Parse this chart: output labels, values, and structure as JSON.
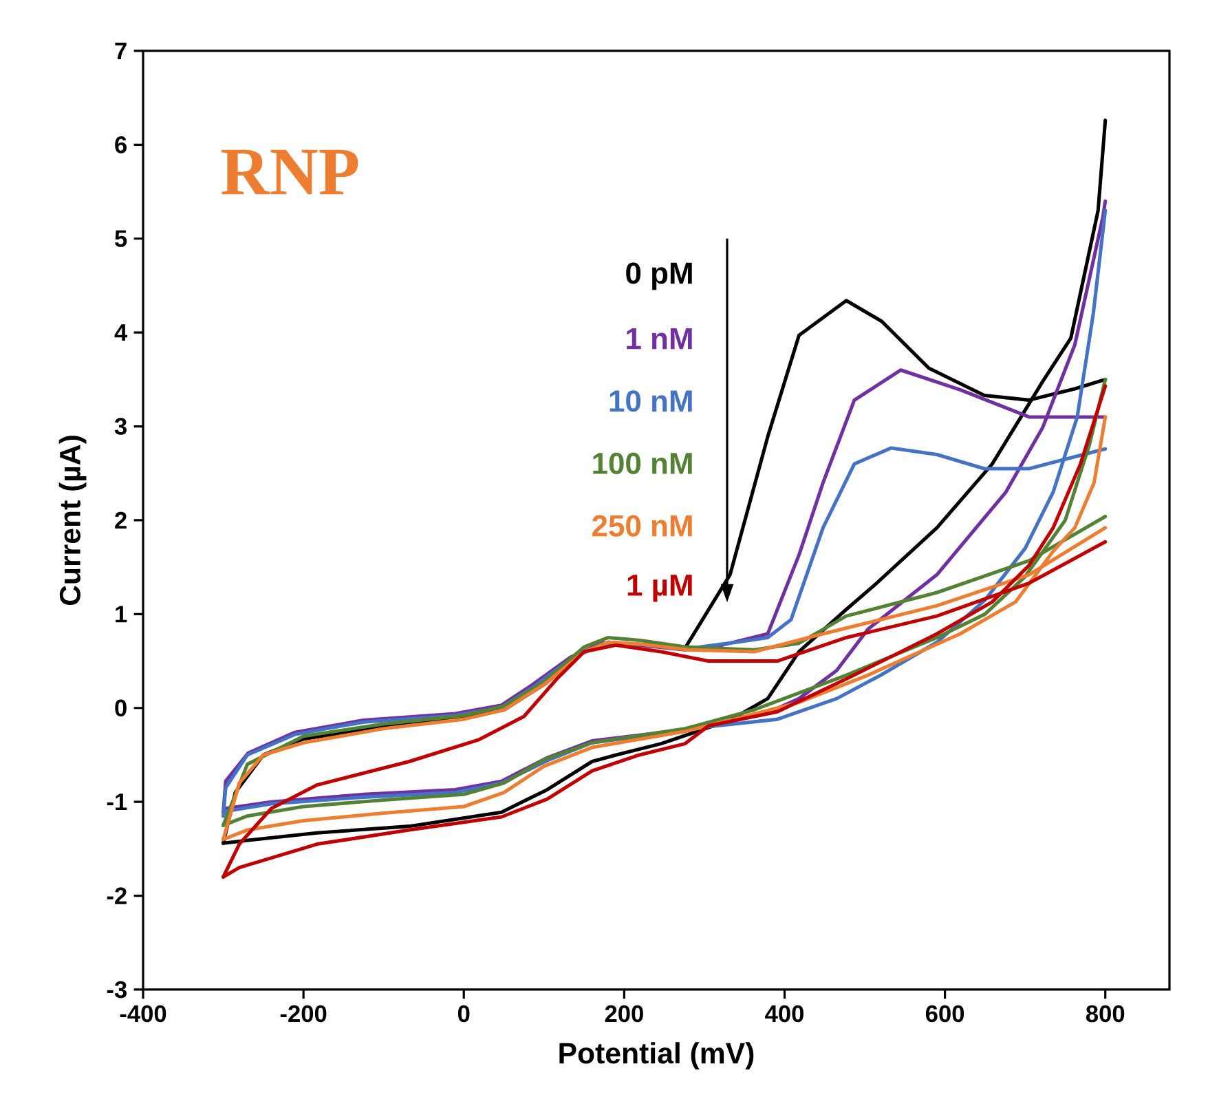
{
  "chart_data": {
    "type": "line",
    "xlabel": "Potential (mV)",
    "ylabel": "Current (µA)",
    "annotations": [
      "RNP"
    ],
    "xlim": [
      -400,
      880
    ],
    "ylim": [
      -3,
      7
    ],
    "xticks": [
      -400,
      -200,
      0,
      200,
      400,
      600,
      800
    ],
    "yticks": [
      -3,
      -2,
      -1,
      0,
      1,
      2,
      3,
      4,
      5,
      6,
      7
    ],
    "grid": false,
    "legend": "center",
    "marker": "none",
    "line_style": "solid",
    "series": [
      {
        "name": "0 pM",
        "color": "#000000",
        "x": [
          -300,
          -285,
          -250,
          -200,
          -100,
          0,
          50,
          100,
          150,
          180,
          220,
          276,
          332,
          379,
          418,
          477,
          521,
          580,
          649,
          705,
          762,
          800
        ],
        "values": [
          -1.44,
          -0.9,
          -0.5,
          -0.33,
          -0.2,
          -0.1,
          -0.02,
          0.25,
          0.6,
          0.7,
          null,
          0.64,
          1.42,
          2.89,
          3.97,
          4.34,
          4.12,
          3.62,
          3.33,
          3.28,
          3.4,
          3.5
        ]
      },
      {
        "color": "#000000",
        "x": [
          800,
          791,
          757,
          722,
          659,
          590,
          511,
          477,
          418,
          379,
          332,
          246,
          190,
          160,
          104,
          47,
          -68,
          -183,
          -269,
          -300
        ],
        "values": [
          6.26,
          5.3,
          3.94,
          3.48,
          2.6,
          1.92,
          1.3,
          1.05,
          0.6,
          0.1,
          -0.13,
          -0.38,
          -0.5,
          -0.57,
          -0.87,
          -1.11,
          -1.26,
          -1.33,
          -1.41,
          -1.44
        ]
      },
      {
        "name": "1 nM",
        "color": "#7030a0",
        "x": [
          -300,
          -297,
          -269,
          -211,
          -125,
          -11,
          47,
          86,
          133,
          172,
          219,
          276,
          322,
          379,
          418,
          448,
          487,
          545,
          619,
          705,
          800
        ],
        "values": [
          -1.11,
          -0.78,
          -0.48,
          -0.26,
          -0.13,
          -0.06,
          0.03,
          0.25,
          0.54,
          0.69,
          0.67,
          0.62,
          0.67,
          0.79,
          1.63,
          2.4,
          3.28,
          3.6,
          3.39,
          3.1,
          3.1
        ]
      },
      {
        "color": "#7030a0",
        "x": [
          800,
          797,
          762,
          722,
          676,
          590,
          504,
          465,
          418,
          379,
          305,
          276,
          160,
          104,
          47,
          -11,
          -125,
          -240,
          -297,
          -300
        ],
        "values": [
          5.4,
          5.23,
          3.87,
          2.99,
          2.3,
          1.42,
          0.84,
          0.4,
          0.1,
          -0.05,
          -0.19,
          -0.23,
          -0.35,
          -0.53,
          -0.78,
          -0.87,
          -0.92,
          -1.0,
          -1.07,
          -1.11
        ]
      },
      {
        "name": "10 nM",
        "color": "#4472c4",
        "x": [
          -300,
          -297,
          -270,
          -210,
          -125,
          -11,
          47,
          86,
          133,
          172,
          219,
          276,
          340,
          379,
          408,
          448,
          487,
          533,
          590,
          649,
          705,
          800
        ],
        "values": [
          -1.15,
          -0.85,
          -0.5,
          -0.28,
          -0.15,
          -0.08,
          0.01,
          0.22,
          0.52,
          0.68,
          0.68,
          0.63,
          0.7,
          0.75,
          0.94,
          1.92,
          2.6,
          2.77,
          2.7,
          2.55,
          2.55,
          2.76
        ]
      },
      {
        "color": "#4472c4",
        "x": [
          800,
          785,
          765,
          735,
          700,
          650,
          590,
          520,
          465,
          391,
          305,
          276,
          160,
          104,
          47,
          -11,
          -125,
          -240,
          -297,
          -300
        ],
        "values": [
          5.3,
          4.2,
          3.1,
          2.3,
          1.7,
          1.15,
          0.7,
          0.35,
          0.1,
          -0.12,
          -0.2,
          -0.24,
          -0.37,
          -0.56,
          -0.8,
          -0.9,
          -0.95,
          -1.02,
          -1.1,
          -1.15
        ]
      },
      {
        "name": "100 nM",
        "color": "#548235",
        "x": [
          -300,
          -270,
          -200,
          -100,
          0,
          50,
          100,
          150,
          180,
          220,
          276,
          362,
          418,
          477,
          590,
          705,
          800
        ],
        "values": [
          -1.25,
          -0.6,
          -0.3,
          -0.17,
          -0.08,
          0.02,
          0.28,
          0.65,
          0.75,
          0.72,
          0.65,
          0.62,
          0.69,
          0.98,
          1.23,
          1.57,
          2.04
        ]
      },
      {
        "color": "#548235",
        "x": [
          800,
          780,
          750,
          700,
          650,
          590,
          477,
          362,
          276,
          160,
          100,
          50,
          0,
          -100,
          -200,
          -270,
          -300
        ],
        "values": [
          3.5,
          2.8,
          2.0,
          1.4,
          1.0,
          0.75,
          0.35,
          -0.02,
          -0.22,
          -0.37,
          -0.55,
          -0.8,
          -0.92,
          -0.98,
          -1.05,
          -1.15,
          -1.25
        ]
      },
      {
        "name": "250 nM",
        "color": "#ed7d31",
        "x": [
          -300,
          -280,
          -250,
          -200,
          -100,
          0,
          50,
          100,
          150,
          180,
          220,
          280,
          362,
          448,
          590,
          705,
          800
        ],
        "values": [
          -1.4,
          -0.8,
          -0.5,
          -0.37,
          -0.22,
          -0.12,
          -0.02,
          0.25,
          0.6,
          0.7,
          0.68,
          0.62,
          0.6,
          0.79,
          1.09,
          1.42,
          1.92
        ]
      },
      {
        "color": "#ed7d31",
        "x": [
          800,
          786,
          762,
          735,
          688,
          619,
          504,
          418,
          332,
          276,
          160,
          100,
          50,
          0,
          -100,
          -200,
          -270,
          -300
        ],
        "values": [
          3.1,
          2.4,
          1.92,
          1.67,
          1.13,
          0.79,
          0.35,
          0.06,
          -0.13,
          -0.25,
          -0.42,
          -0.62,
          -0.9,
          -1.05,
          -1.12,
          -1.2,
          -1.3,
          -1.4
        ]
      },
      {
        "name": "1 µM",
        "color": "#c00000",
        "x": [
          -300,
          -280,
          -240,
          -183,
          -68,
          18,
          75,
          116,
          150,
          190,
          246,
          305,
          391,
          477,
          590,
          705,
          800
        ],
        "values": [
          -1.8,
          -1.45,
          -1.07,
          -0.82,
          -0.57,
          -0.34,
          -0.09,
          0.31,
          0.6,
          0.67,
          0.6,
          0.5,
          0.5,
          0.75,
          0.98,
          1.33,
          1.77
        ]
      },
      {
        "color": "#c00000",
        "x": [
          800,
          769,
          735,
          705,
          659,
          590,
          477,
          391,
          305,
          276,
          219,
          160,
          104,
          47,
          -68,
          -183,
          -280,
          -300
        ],
        "values": [
          3.43,
          2.6,
          1.92,
          1.52,
          1.13,
          0.79,
          0.31,
          -0.04,
          -0.19,
          -0.38,
          -0.5,
          -0.67,
          -0.97,
          -1.16,
          -1.3,
          -1.45,
          -1.7,
          -1.8
        ]
      }
    ]
  }
}
